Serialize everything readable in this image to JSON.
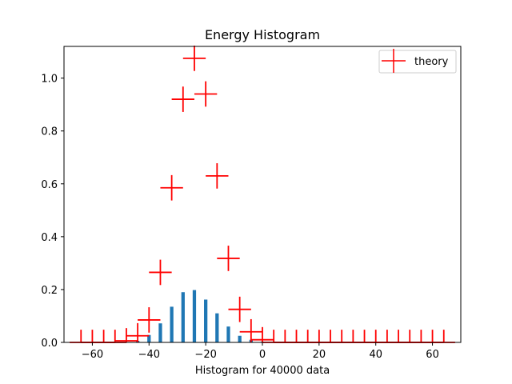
{
  "chart_data": {
    "type": "bar",
    "title": "Energy Histogram",
    "xlabel": "Histogram for 40000 data",
    "ylabel": "",
    "xlim": [
      -70,
      70
    ],
    "ylim": [
      0,
      1.12
    ],
    "x_ticks": [
      -60,
      -40,
      -20,
      0,
      20,
      40,
      60
    ],
    "x_tick_labels": [
      "−60",
      "−40",
      "−20",
      "0",
      "20",
      "40",
      "60"
    ],
    "y_ticks": [
      0.0,
      0.2,
      0.4,
      0.6,
      0.8,
      1.0
    ],
    "y_tick_labels": [
      "0.0",
      "0.2",
      "0.4",
      "0.6",
      "0.8",
      "1.0"
    ],
    "grid": false,
    "legend": {
      "position": "top-right",
      "entries": [
        "theory"
      ]
    },
    "series": [
      {
        "type": "bar",
        "color": "#1f77b4",
        "bar_width": 1.2,
        "x": [
          -64,
          -60,
          -56,
          -52,
          -48,
          -44,
          -40,
          -36,
          -32,
          -28,
          -24,
          -20,
          -16,
          -12,
          -8,
          -4,
          0,
          4,
          8,
          12,
          16,
          20,
          24,
          28,
          32,
          36,
          40,
          44,
          48,
          52,
          56,
          60,
          64
        ],
        "values": [
          0,
          0,
          0,
          0,
          0.001,
          0.006,
          0.028,
          0.072,
          0.135,
          0.19,
          0.198,
          0.162,
          0.11,
          0.06,
          0.025,
          0.01,
          0.003,
          0,
          0,
          0,
          0,
          0,
          0,
          0,
          0,
          0,
          0,
          0,
          0,
          0,
          0,
          0,
          0
        ]
      },
      {
        "name": "theory",
        "type": "errorbar",
        "color": "#ff0000",
        "x": [
          -64,
          -60,
          -56,
          -52,
          -48,
          -44,
          -40,
          -36,
          -32,
          -28,
          -24,
          -20,
          -16,
          -12,
          -8,
          -4,
          0,
          4,
          8,
          12,
          16,
          20,
          24,
          28,
          32,
          36,
          40,
          44,
          48,
          52,
          56,
          60,
          64
        ],
        "values": [
          0,
          0,
          0,
          0,
          0.006,
          0.025,
          0.085,
          0.265,
          0.585,
          0.92,
          1.075,
          0.94,
          0.63,
          0.318,
          0.125,
          0.04,
          0.01,
          0,
          0,
          0,
          0,
          0,
          0,
          0,
          0,
          0,
          0,
          0,
          0,
          0,
          0,
          0,
          0
        ],
        "xerr": 4,
        "yerr": 0.048
      }
    ],
    "colors": {
      "bars": "#1f77b4",
      "theory": "#ff0000"
    }
  }
}
